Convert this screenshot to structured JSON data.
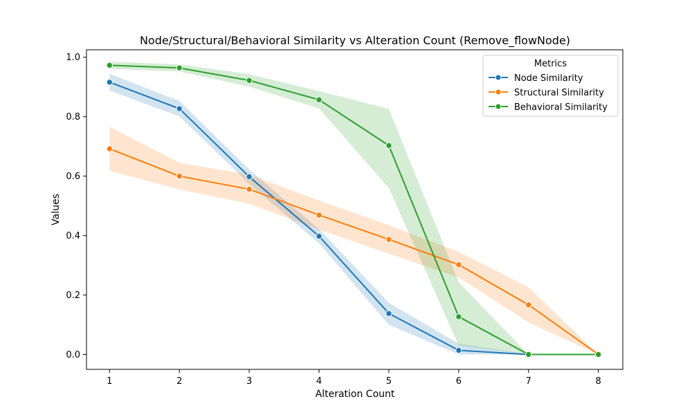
{
  "chart_data": {
    "type": "line",
    "title": "Node/Structural/Behavioral Similarity vs Alteration Count (Remove_flowNode)",
    "xlabel": "Alteration Count",
    "ylabel": "Values",
    "xlim": [
      0.67,
      8.35
    ],
    "ylim": [
      -0.05,
      1.025
    ],
    "x_ticks": [
      1,
      2,
      3,
      4,
      5,
      6,
      7,
      8
    ],
    "y_ticks": [
      0.0,
      0.2,
      0.4,
      0.6,
      0.8,
      1.0
    ],
    "y_tick_labels": [
      "0.0",
      "0.2",
      "0.4",
      "0.6",
      "0.8",
      "1.0"
    ],
    "grid": false,
    "legend": {
      "title": "Metrics",
      "position": "top-right"
    },
    "series": [
      {
        "name": "Node Similarity",
        "color": "#1f77b4",
        "x": [
          1,
          2,
          3,
          4,
          5,
          6,
          7
        ],
        "values": [
          0.916,
          0.827,
          0.598,
          0.398,
          0.138,
          0.014,
          0.0
        ],
        "ci_upper": [
          0.944,
          0.853,
          0.622,
          0.422,
          0.174,
          0.036,
          0.0
        ],
        "ci_lower": [
          0.888,
          0.801,
          0.574,
          0.374,
          0.1,
          0.0,
          0.0
        ]
      },
      {
        "name": "Structural Similarity",
        "color": "#ff7f0e",
        "x": [
          1,
          2,
          3,
          4,
          5,
          6,
          7,
          8
        ],
        "values": [
          0.692,
          0.6,
          0.556,
          0.469,
          0.387,
          0.302,
          0.167,
          0.0
        ],
        "ci_upper": [
          0.766,
          0.645,
          0.605,
          0.518,
          0.435,
          0.345,
          0.226,
          0.0
        ],
        "ci_lower": [
          0.618,
          0.555,
          0.507,
          0.42,
          0.339,
          0.259,
          0.108,
          0.0
        ]
      },
      {
        "name": "Behavioral Similarity",
        "color": "#2ca02c",
        "x": [
          1,
          2,
          3,
          4,
          5,
          6,
          7,
          8
        ],
        "values": [
          0.973,
          0.964,
          0.922,
          0.857,
          0.703,
          0.127,
          0.0,
          0.0
        ],
        "ci_upper": [
          0.985,
          0.976,
          0.943,
          0.886,
          0.826,
          0.243,
          0.0,
          0.0
        ],
        "ci_lower": [
          0.961,
          0.952,
          0.901,
          0.828,
          0.56,
          0.03,
          0.0,
          0.0
        ]
      }
    ]
  }
}
